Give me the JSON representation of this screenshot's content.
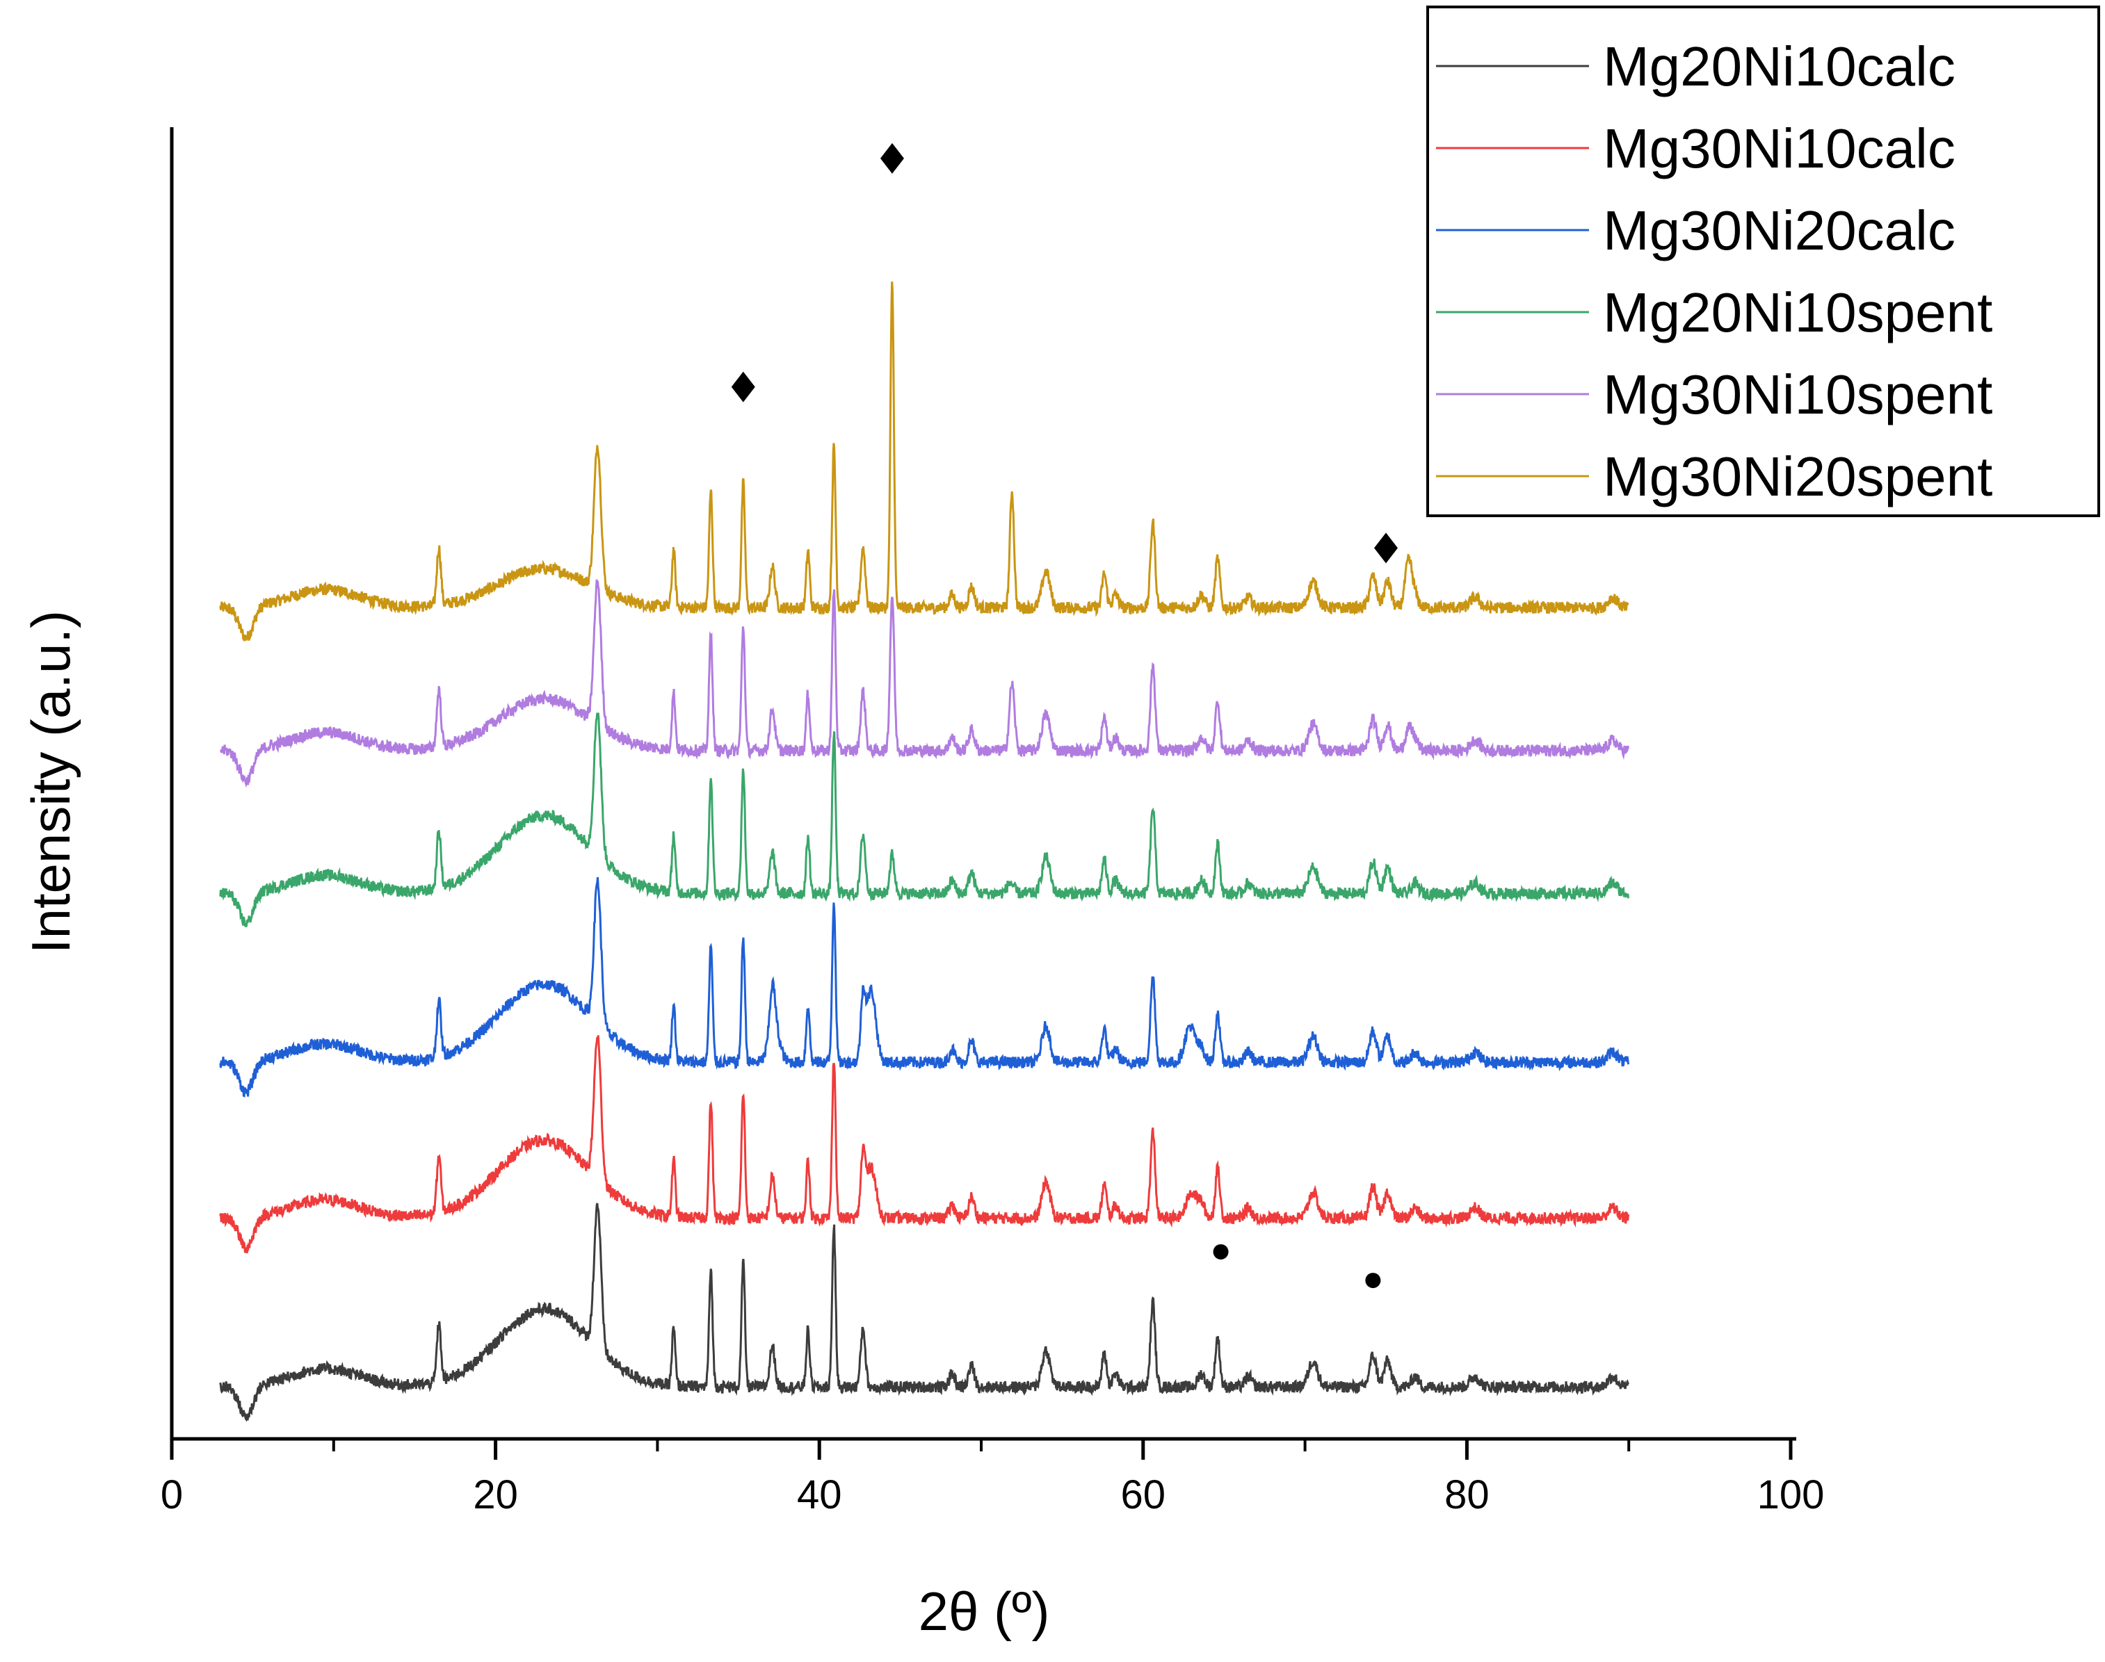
{
  "chart_data": {
    "type": "line",
    "title": "",
    "xlabel": "2θ (º)",
    "ylabel": "Intensity (a.u.)",
    "xlim": [
      0,
      100
    ],
    "ylim": [
      -0.2,
      4.85
    ],
    "x_ticks": [
      "0",
      "20",
      "40",
      "60",
      "80",
      "100"
    ],
    "y_ticks": [],
    "grid": false,
    "legend_position": "top-right",
    "x_range": [
      3,
      90
    ],
    "common_peaks": [
      [
        16.5,
        0.22,
        0.18
      ],
      [
        26.3,
        0.55,
        0.3
      ],
      [
        31.0,
        0.22,
        0.15
      ],
      [
        33.3,
        0.45,
        0.15
      ],
      [
        35.3,
        0.48,
        0.15
      ],
      [
        37.1,
        0.16,
        0.22
      ],
      [
        39.3,
        0.22,
        0.15
      ],
      [
        40.9,
        0.62,
        0.15
      ],
      [
        42.7,
        0.23,
        0.2
      ],
      [
        48.2,
        0.05,
        0.25
      ],
      [
        49.4,
        0.08,
        0.25
      ],
      [
        54.0,
        0.14,
        0.35
      ],
      [
        57.6,
        0.13,
        0.2
      ],
      [
        58.3,
        0.05,
        0.25
      ],
      [
        60.6,
        0.33,
        0.2
      ],
      [
        63.6,
        0.05,
        0.3
      ],
      [
        64.6,
        0.19,
        0.2
      ],
      [
        66.5,
        0.04,
        0.3
      ],
      [
        70.5,
        0.1,
        0.4
      ],
      [
        74.2,
        0.12,
        0.3
      ],
      [
        75.1,
        0.1,
        0.3
      ],
      [
        76.8,
        0.04,
        0.3
      ],
      [
        80.5,
        0.04,
        0.4
      ],
      [
        89.0,
        0.04,
        0.4
      ]
    ],
    "series": [
      {
        "name": "Mg20Ni10calc",
        "color": "#3c3c3c",
        "offset": 0.0,
        "hump": 0.3,
        "extra_peaks": []
      },
      {
        "name": "Mg30Ni10calc",
        "color": "#ee3b3b",
        "offset": 0.65,
        "hump": 0.3,
        "extra_peaks": [
          [
            43.2,
            0.2,
            0.4
          ],
          [
            63.0,
            0.1,
            0.45
          ]
        ]
      },
      {
        "name": "Mg30Ni20calc",
        "color": "#1f5fd6",
        "offset": 1.25,
        "hump": 0.3,
        "extra_peaks": [
          [
            37.2,
            0.15,
            0.45
          ],
          [
            43.2,
            0.28,
            0.4
          ],
          [
            62.9,
            0.14,
            0.45
          ]
        ]
      },
      {
        "name": "Mg20Ni10spent",
        "color": "#3aa66a",
        "offset": 1.9,
        "hump": 0.3,
        "extra_peaks": [
          [
            44.5,
            0.15,
            0.2
          ],
          [
            51.8,
            0.04,
            0.3
          ]
        ]
      },
      {
        "name": "Mg30Ni10spent",
        "color": "#b07ce0",
        "offset": 2.45,
        "hump": 0.2,
        "extra_peaks": [
          [
            44.5,
            0.6,
            0.18
          ],
          [
            51.9,
            0.26,
            0.22
          ],
          [
            76.4,
            0.08,
            0.3
          ]
        ]
      },
      {
        "name": "Mg30Ni20spent",
        "color": "#c99512",
        "offset": 3.0,
        "hump": 0.15,
        "extra_peaks": [
          [
            44.5,
            1.25,
            0.15
          ],
          [
            51.9,
            0.45,
            0.18
          ],
          [
            76.4,
            0.18,
            0.3
          ]
        ]
      }
    ],
    "annotations": [
      {
        "marker": "diamond",
        "x": 35.3,
        "y": 3.85,
        "text": "◆"
      },
      {
        "marker": "diamond",
        "x": 44.5,
        "y": 4.73,
        "text": "◆"
      },
      {
        "marker": "diamond",
        "x": 75.0,
        "y": 3.23,
        "text": "◆"
      },
      {
        "marker": "circle",
        "x": 64.8,
        "y": 0.52,
        "text": "●"
      },
      {
        "marker": "circle",
        "x": 74.2,
        "y": 0.41,
        "text": "●"
      }
    ]
  }
}
